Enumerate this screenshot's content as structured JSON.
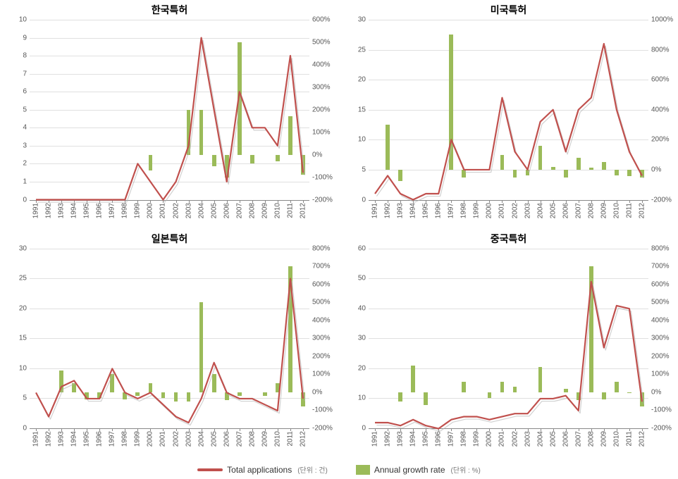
{
  "layout": {
    "panels": [
      "korea",
      "usa",
      "japan",
      "china"
    ],
    "rows": 2,
    "cols": 2
  },
  "colors": {
    "line": "#c0504d",
    "line_shadow": "#b3b3b3",
    "bar": "#9bbb59",
    "gridline": "#e0e0e0",
    "axis": "#888888",
    "text": "#555555",
    "background": "#ffffff"
  },
  "typography": {
    "title_fontsize": 14,
    "tick_fontsize": 10,
    "legend_fontsize": 12
  },
  "years": [
    1991,
    1992,
    1993,
    1994,
    1995,
    1996,
    1997,
    1998,
    1999,
    2000,
    2001,
    2002,
    2003,
    2004,
    2005,
    2006,
    2007,
    2008,
    2009,
    2010,
    2011,
    2012
  ],
  "legend": {
    "line_label": "Total applications",
    "line_unit": "(단위 : 건)",
    "bar_label": "Annual growth rate",
    "bar_unit": "(단위 : %)"
  },
  "panels": {
    "korea": {
      "title": "한국특허",
      "type": "line+bar",
      "y_left": {
        "min": 0,
        "max": 10,
        "step": 1
      },
      "y_right": {
        "min": -200,
        "max": 600,
        "step": 100,
        "suffix": "%"
      },
      "line_values": [
        0,
        0,
        0,
        0,
        0,
        0,
        0,
        0,
        2,
        1,
        0,
        1,
        3,
        9,
        5,
        1,
        6,
        4,
        4,
        3,
        8,
        1.5
      ],
      "bar_values": [
        null,
        null,
        null,
        null,
        null,
        null,
        null,
        null,
        null,
        -70,
        null,
        null,
        200,
        200,
        -50,
        -100,
        500,
        -40,
        0,
        -30,
        170,
        -90
      ]
    },
    "usa": {
      "title": "미국특허",
      "type": "line+bar",
      "y_left": {
        "min": 0,
        "max": 30,
        "step": 5
      },
      "y_right": {
        "min": -200,
        "max": 1000,
        "step": 200,
        "suffix": "%"
      },
      "line_values": [
        1,
        4,
        1,
        0,
        1,
        1,
        10,
        5,
        5,
        5,
        17,
        8,
        5,
        13,
        15,
        8,
        15,
        17,
        26,
        15,
        8,
        4
      ],
      "bar_values": [
        null,
        300,
        -75,
        null,
        null,
        0,
        900,
        -50,
        0,
        0,
        100,
        -50,
        -40,
        160,
        20,
        -50,
        80,
        15,
        50,
        -40,
        -45,
        -50
      ]
    },
    "japan": {
      "title": "일본특허",
      "type": "line+bar",
      "y_left": {
        "min": 0,
        "max": 30,
        "step": 5
      },
      "y_right": {
        "min": -200,
        "max": 800,
        "step": 100,
        "suffix": "%"
      },
      "line_values": [
        6,
        2,
        7,
        8,
        5,
        5,
        10,
        6,
        5,
        6,
        4,
        2,
        1,
        5,
        11,
        6,
        5,
        5,
        4,
        3,
        25,
        5
      ],
      "bar_values": [
        null,
        0,
        120,
        50,
        -40,
        -30,
        100,
        -40,
        -20,
        50,
        -30,
        -50,
        -50,
        500,
        100,
        -45,
        -20,
        0,
        -20,
        50,
        700,
        -80
      ]
    },
    "china": {
      "title": "중국특허",
      "type": "line+bar",
      "y_left": {
        "min": 0,
        "max": 60,
        "step": 10
      },
      "y_right": {
        "min": -200,
        "max": 800,
        "step": 100,
        "suffix": "%"
      },
      "line_values": [
        2,
        2,
        1,
        3,
        1,
        0,
        3,
        4,
        4,
        3,
        4,
        5,
        5,
        10,
        10,
        11,
        6,
        49,
        27,
        41,
        40,
        9
      ],
      "bar_values": [
        null,
        0,
        -50,
        150,
        -70,
        null,
        null,
        60,
        0,
        -30,
        60,
        30,
        0,
        140,
        0,
        20,
        -45,
        700,
        -40,
        60,
        -5,
        -80
      ]
    }
  }
}
